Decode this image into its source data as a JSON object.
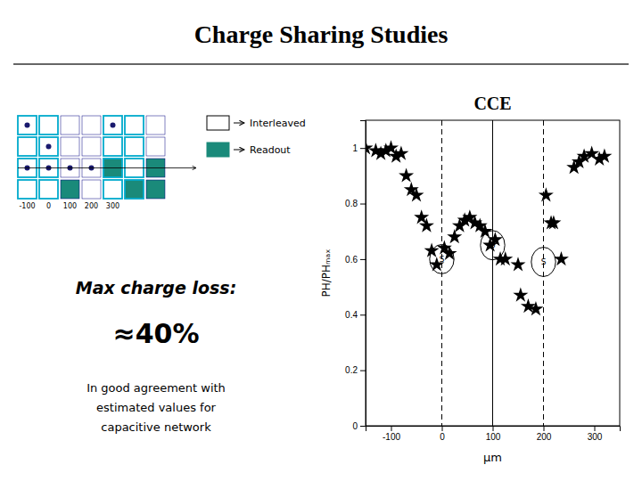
{
  "chart_data": {
    "type": "scatter",
    "title": "Charge Sharing Studies",
    "subtitle": "CCE",
    "x_label": "μm",
    "y_label": "PH/PHₘₐₓ",
    "x": [
      -150,
      -130,
      -120,
      -110,
      -100,
      -90,
      -80,
      -70,
      -60,
      -50,
      -40,
      -30,
      -20,
      -10,
      5,
      15,
      25,
      35,
      45,
      55,
      65,
      75,
      85,
      95,
      105,
      115,
      125,
      150,
      155,
      170,
      185,
      205,
      215,
      220,
      235,
      260,
      270,
      280,
      295,
      310,
      320
    ],
    "values": [
      1.0,
      0.99,
      0.98,
      0.99,
      1.0,
      0.97,
      0.98,
      0.9,
      0.85,
      0.83,
      0.75,
      0.72,
      0.63,
      0.58,
      0.64,
      0.62,
      0.68,
      0.72,
      0.74,
      0.75,
      0.73,
      0.72,
      0.7,
      0.65,
      0.67,
      0.6,
      0.6,
      0.58,
      0.47,
      0.43,
      0.42,
      0.83,
      0.73,
      0.73,
      0.6,
      0.93,
      0.95,
      0.97,
      0.98,
      0.96,
      0.97
    ],
    "color": "black",
    "marker": "star",
    "xlim": [
      -150,
      350
    ],
    "ylim": [
      0,
      1.1
    ],
    "xticks": [
      -100,
      0,
      100,
      200,
      300
    ],
    "yticks": [
      0,
      0.2,
      0.4,
      0.6,
      0.8,
      1
    ],
    "grid": false,
    "vlines": [
      {
        "x": 0,
        "line_style": "dashed"
      },
      {
        "x": 100,
        "line_style": "solid"
      },
      {
        "x": 200,
        "line_style": "dashed"
      }
    ],
    "highlights": [
      {
        "x": 0,
        "y": 0.6,
        "label": "S"
      },
      {
        "x": 100,
        "y": 0.65,
        "label": "S"
      },
      {
        "x": 200,
        "y": 0.59,
        "label": "S"
      }
    ],
    "annotations": [
      "Max charge loss:",
      "≈40%",
      "In good agreement with\nestimated values for\ncapacitive network"
    ],
    "diagram": {
      "legend_entries": [
        {
          "name": "Interleaved",
          "color": "white"
        },
        {
          "name": "Readout",
          "color": "#1a8a7a"
        }
      ],
      "scale_labels": [
        -100,
        0,
        100,
        200,
        300
      ],
      "border_color": "#00aacc",
      "dot_color": "#1a1a6e"
    }
  }
}
